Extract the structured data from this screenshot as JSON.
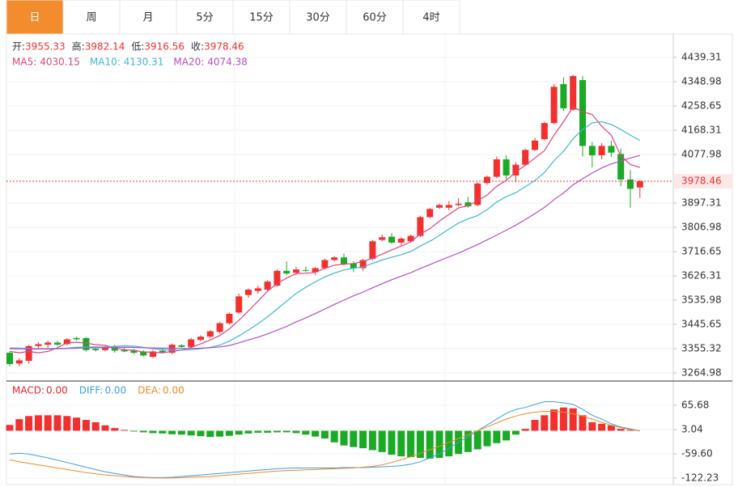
{
  "tabs": [
    "日",
    "周",
    "月",
    "5分",
    "15分",
    "30分",
    "60分",
    "4时"
  ],
  "active_tab": 0,
  "chart_data": [
    {
      "type": "candlestick",
      "legend": [
        {
          "label": "开:",
          "value": 3955.33
        },
        {
          "label": "高:",
          "value": 3982.14
        },
        {
          "label": "低:",
          "value": 3916.56
        },
        {
          "label": "收:",
          "value": 3978.46
        }
      ],
      "up_color": "#f2302e",
      "down_color": "#1aaa26",
      "open": [
        3340,
        3300,
        3310,
        3365,
        3370,
        3378,
        3372,
        3395,
        3395,
        3355,
        3350,
        3362,
        3350,
        3350,
        3345,
        3325,
        3348,
        3340,
        3368,
        3362,
        3388,
        3400,
        3418,
        3450,
        3490,
        3555,
        3570,
        3575,
        3590,
        3645,
        3638,
        3648,
        3640,
        3655,
        3685,
        3695,
        3672,
        3655,
        3690,
        3760,
        3772,
        3750,
        3755,
        3775,
        3845,
        3880,
        3880,
        3890,
        3900,
        3890,
        3972,
        3995,
        4060,
        4000,
        4040,
        4095,
        4135,
        4195,
        4340,
        4245,
        4355,
        4110,
        4075,
        4110,
        4080,
        3985,
        3955.33
      ],
      "high": [
        3345,
        3320,
        3370,
        3380,
        3385,
        3385,
        3395,
        3400,
        3398,
        3362,
        3365,
        3370,
        3358,
        3355,
        3350,
        3350,
        3355,
        3375,
        3372,
        3395,
        3405,
        3425,
        3455,
        3490,
        3560,
        3580,
        3590,
        3610,
        3650,
        3680,
        3660,
        3660,
        3660,
        3690,
        3700,
        3710,
        3680,
        3690,
        3760,
        3780,
        3785,
        3770,
        3780,
        3850,
        3880,
        3895,
        3905,
        3915,
        3920,
        3975,
        4000,
        4070,
        4075,
        4050,
        4100,
        4140,
        4200,
        4340,
        4365,
        4375,
        4370,
        4125,
        4120,
        4130,
        4100,
        4020,
        3982.14
      ],
      "low": [
        3290,
        3290,
        3300,
        3355,
        3360,
        3365,
        3368,
        3385,
        3345,
        3345,
        3345,
        3340,
        3342,
        3335,
        3325,
        3320,
        3338,
        3335,
        3358,
        3358,
        3382,
        3395,
        3412,
        3445,
        3485,
        3545,
        3560,
        3570,
        3585,
        3630,
        3630,
        3640,
        3630,
        3650,
        3680,
        3665,
        3640,
        3645,
        3685,
        3755,
        3745,
        3740,
        3750,
        3770,
        3840,
        3875,
        3870,
        3885,
        3880,
        3885,
        3965,
        3990,
        3985,
        3975,
        4035,
        4090,
        4130,
        4190,
        4240,
        4240,
        4070,
        4030,
        4060,
        4070,
        3960,
        3880,
        3916.56
      ],
      "close": [
        3298,
        3312,
        3365,
        3372,
        3378,
        3370,
        3390,
        3390,
        3350,
        3350,
        3360,
        3348,
        3345,
        3340,
        3330,
        3345,
        3342,
        3370,
        3362,
        3390,
        3400,
        3420,
        3450,
        3485,
        3550,
        3575,
        3580,
        3605,
        3645,
        3635,
        3650,
        3645,
        3655,
        3685,
        3695,
        3670,
        3655,
        3685,
        3755,
        3770,
        3750,
        3765,
        3775,
        3845,
        3875,
        3890,
        3890,
        3895,
        3885,
        3970,
        3995,
        4060,
        4000,
        4040,
        4095,
        4130,
        4195,
        4330,
        4250,
        4370,
        4110,
        4075,
        4110,
        4085,
        3985,
        3950,
        3978.46
      ],
      "series": [
        {
          "name": "MA5:",
          "color": "#e0457b",
          "last": 4030.15,
          "values": [
            3345,
            3340,
            3345,
            3340,
            3345,
            3359,
            3377,
            3379,
            3376,
            3370,
            3368,
            3358,
            3351,
            3349,
            3343,
            3342,
            3340,
            3345,
            3350,
            3360,
            3373,
            3388,
            3404,
            3429,
            3461,
            3496,
            3532,
            3569,
            3598,
            3618,
            3635,
            3636,
            3640,
            3654,
            3666,
            3670,
            3672,
            3680,
            3692,
            3707,
            3723,
            3737,
            3753,
            3782,
            3802,
            3830,
            3855,
            3879,
            3887,
            3906,
            3927,
            3960,
            3982,
            4013,
            4038,
            4065,
            4092,
            4150,
            4200,
            4255,
            4237,
            4227,
            4183,
            4150,
            4073,
            4041,
            4030.15
          ]
        },
        {
          "name": "MA10:",
          "color": "#3bb9d9",
          "last": 4130.31,
          "values": [
            3358,
            3357,
            3356,
            3356,
            3356,
            3356,
            3357,
            3360,
            3362,
            3362,
            3362,
            3364,
            3366,
            3365,
            3360,
            3355,
            3352,
            3350,
            3350,
            3352,
            3355,
            3360,
            3369,
            3383,
            3403,
            3425,
            3448,
            3474,
            3503,
            3532,
            3561,
            3584,
            3604,
            3622,
            3637,
            3648,
            3655,
            3659,
            3673,
            3685,
            3696,
            3705,
            3717,
            3737,
            3755,
            3777,
            3800,
            3823,
            3838,
            3851,
            3873,
            3901,
            3921,
            3936,
            3958,
            3981,
            4011,
            4055,
            4090,
            4137,
            4171,
            4196,
            4200,
            4190,
            4171,
            4150,
            4130.31
          ]
        },
        {
          "name": "MA20:",
          "color": "#b44fc4",
          "last": 4074.38,
          "values": [
            3355,
            3355,
            3354,
            3354,
            3354,
            3355,
            3356,
            3357,
            3358,
            3359,
            3359,
            3360,
            3360,
            3360,
            3359,
            3358,
            3357,
            3357,
            3356,
            3356,
            3357,
            3359,
            3362,
            3367,
            3377,
            3388,
            3398,
            3410,
            3424,
            3438,
            3455,
            3470,
            3486,
            3503,
            3520,
            3536,
            3552,
            3566,
            3582,
            3597,
            3612,
            3625,
            3638,
            3654,
            3668,
            3683,
            3697,
            3711,
            3727,
            3743,
            3760,
            3778,
            3796,
            3815,
            3836,
            3858,
            3881,
            3910,
            3935,
            3965,
            3988,
            4009,
            4028,
            4043,
            4054,
            4065,
            4074.38
          ]
        }
      ],
      "last_price": 3978.46,
      "last_price_color": "#f2302e",
      "ylim": [
        3237.9,
        4517.6
      ],
      "yticks": [
        4439.31,
        4348.98,
        4258.65,
        4168.31,
        4077.98,
        3897.31,
        3806.98,
        3716.65,
        3626.31,
        3535.98,
        3445.65,
        3355.32,
        3264.98
      ],
      "grid": true
    },
    {
      "type": "macd",
      "up_color": "#f2302e",
      "down_color": "#1aaa26",
      "series": [
        {
          "name": "MACD:",
          "color": "#e0262c",
          "last": {
            "value": 0,
            "label": "0.00"
          },
          "values": [
            15,
            30,
            38,
            40,
            40,
            40,
            38,
            34,
            28,
            22,
            14,
            7,
            2,
            -2,
            -4,
            -6,
            -7,
            -9,
            -10,
            -12,
            -14,
            -16,
            -15,
            -13,
            -10,
            -7,
            -5,
            -5,
            -4,
            -4,
            -6,
            -10,
            -15,
            -20,
            -30,
            -38,
            -42,
            -45,
            -50,
            -55,
            -62,
            -66,
            -68,
            -70,
            -72,
            -70,
            -66,
            -60,
            -55,
            -48,
            -40,
            -32,
            -25,
            -10,
            5,
            28,
            40,
            55,
            60,
            58,
            40,
            22,
            18,
            14,
            5,
            2,
            0
          ]
        },
        {
          "name": "DIFF:",
          "color": "#3ba0e6",
          "last": {
            "value": 0,
            "label": "0.00"
          },
          "values": [
            -60,
            -58,
            -60,
            -65,
            -70,
            -76,
            -82,
            -88,
            -94,
            -100,
            -106,
            -110,
            -114,
            -118,
            -120,
            -121,
            -121,
            -120,
            -118,
            -116,
            -114,
            -112,
            -110,
            -108,
            -106,
            -104,
            -102,
            -100,
            -98,
            -97,
            -96,
            -96,
            -96,
            -96,
            -96,
            -95,
            -95,
            -95,
            -94,
            -93,
            -92,
            -90,
            -86,
            -80,
            -70,
            -60,
            -45,
            -30,
            -15,
            0,
            15,
            30,
            45,
            55,
            60,
            68,
            75,
            75,
            72,
            68,
            55,
            40,
            30,
            18,
            10,
            5,
            0
          ]
        },
        {
          "name": "DEA:",
          "color": "#f08a24",
          "last": {
            "value": 0,
            "label": "0.00"
          },
          "values": [
            -75,
            -80,
            -84,
            -88,
            -92,
            -96,
            -100,
            -104,
            -108,
            -111,
            -114,
            -116,
            -118,
            -120,
            -121,
            -122,
            -122,
            -122,
            -121,
            -120,
            -119,
            -118,
            -116,
            -114,
            -112,
            -110,
            -108,
            -106,
            -104,
            -103,
            -102,
            -101,
            -100,
            -99,
            -98,
            -97,
            -96,
            -94,
            -92,
            -88,
            -82,
            -75,
            -67,
            -58,
            -49,
            -40,
            -30,
            -20,
            -10,
            0,
            10,
            20,
            30,
            38,
            44,
            48,
            50,
            50,
            48,
            44,
            38,
            30,
            22,
            14,
            8,
            3,
            0
          ]
        }
      ],
      "ylim": [
        -141,
        126.3
      ],
      "yticks": [
        65.68,
        3.04,
        {
          "value": -59.6,
          "label": "-59.60"
        },
        -122.23
      ],
      "grid": true
    }
  ]
}
